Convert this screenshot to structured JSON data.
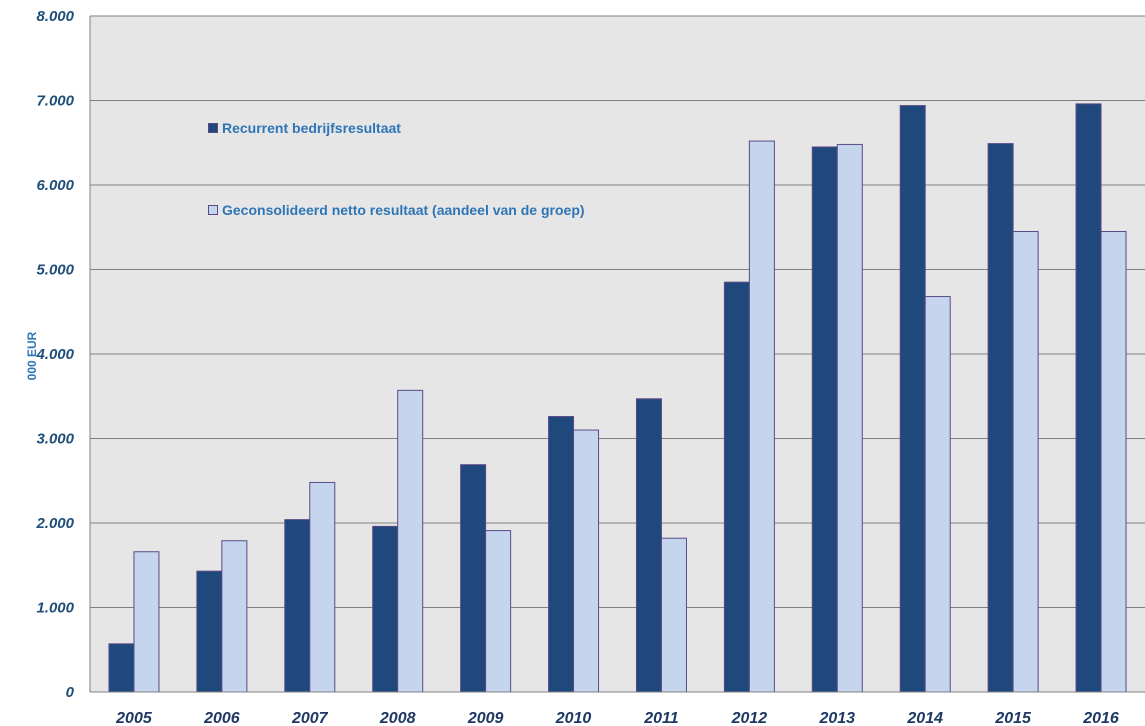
{
  "chart_data": {
    "type": "bar",
    "categories": [
      "2005",
      "2006",
      "2007",
      "2008",
      "2009",
      "2010",
      "2011",
      "2012",
      "2013",
      "2014",
      "2015",
      "2016"
    ],
    "series": [
      {
        "name": "Recurrent bedrijfsresultaat",
        "values": [
          570,
          1430,
          2040,
          1960,
          2690,
          3260,
          3470,
          4850,
          6450,
          6940,
          6490,
          6960
        ],
        "color": "#1f497d"
      },
      {
        "name": "Geconsolideerd netto resultaat (aandeel van de groep)",
        "values": [
          1660,
          1790,
          2480,
          3570,
          1910,
          3100,
          1820,
          6520,
          6480,
          4680,
          5450,
          5450
        ],
        "color": "#c6d5ee"
      }
    ],
    "ylabel": "000 EUR",
    "ylim": [
      0,
      8000
    ],
    "yticks": [
      "0",
      "1.000",
      "2.000",
      "3.000",
      "4.000",
      "5.000",
      "6.000",
      "7.000",
      "8.000"
    ],
    "grid": true,
    "legend_position": "top-left",
    "colors": {
      "plot_background": "#e6e6e6",
      "gridline": "#808080",
      "bar_outline": "#5a4a86"
    }
  }
}
